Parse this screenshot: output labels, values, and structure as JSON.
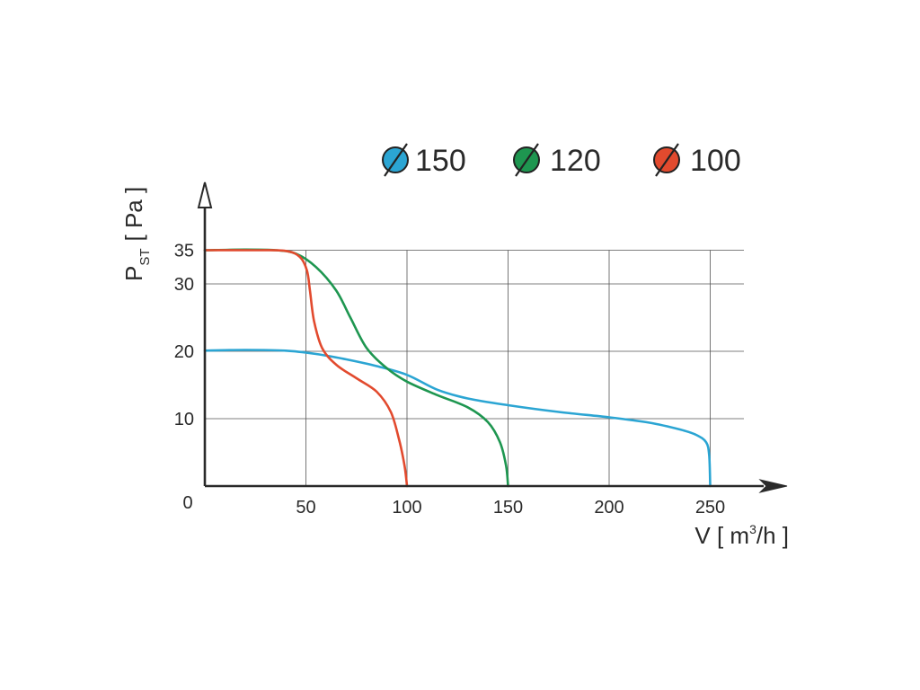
{
  "chart_data": {
    "type": "line",
    "title": "",
    "xlabel": {
      "main": "V [ m",
      "sup": "3",
      "tail": "/h ]"
    },
    "ylabel": {
      "main": "P",
      "sub": "ST",
      "tail": "[ Pa ]"
    },
    "xlim": [
      0,
      260
    ],
    "ylim": [
      0,
      45
    ],
    "x_ticks": [
      50,
      100,
      150,
      200,
      250
    ],
    "y_ticks": [
      10,
      20,
      30,
      35
    ],
    "origin_label": "0",
    "grid": true,
    "legend_position": "top-right",
    "series": [
      {
        "name": "150",
        "color": "#2ba5d3",
        "points": [
          [
            0,
            20.1
          ],
          [
            20,
            20.2
          ],
          [
            40,
            20.1
          ],
          [
            55,
            19.6
          ],
          [
            70,
            18.8
          ],
          [
            85,
            17.8
          ],
          [
            100,
            16.5
          ],
          [
            115,
            14.3
          ],
          [
            130,
            13.0
          ],
          [
            150,
            12.0
          ],
          [
            175,
            11.0
          ],
          [
            200,
            10.2
          ],
          [
            220,
            9.4
          ],
          [
            235,
            8.4
          ],
          [
            243,
            7.6
          ],
          [
            248,
            6.5
          ],
          [
            249.5,
            4.5
          ],
          [
            250,
            0
          ]
        ]
      },
      {
        "name": "120",
        "color": "#1e9650",
        "points": [
          [
            0,
            35.0
          ],
          [
            20,
            35.1
          ],
          [
            35,
            35.0
          ],
          [
            45,
            34.5
          ],
          [
            55,
            32.5
          ],
          [
            65,
            29.0
          ],
          [
            72,
            25.0
          ],
          [
            80,
            20.5
          ],
          [
            90,
            17.5
          ],
          [
            100,
            15.5
          ],
          [
            115,
            13.5
          ],
          [
            130,
            11.7
          ],
          [
            140,
            9.5
          ],
          [
            146,
            6.5
          ],
          [
            149,
            3.0
          ],
          [
            150,
            0
          ]
        ]
      },
      {
        "name": "100",
        "color": "#e24a2e",
        "points": [
          [
            0,
            35.0
          ],
          [
            25,
            35.0
          ],
          [
            40,
            34.9
          ],
          [
            47,
            34.0
          ],
          [
            50.5,
            32.0
          ],
          [
            52,
            29.0
          ],
          [
            54,
            24.5
          ],
          [
            58,
            20.5
          ],
          [
            65,
            18.0
          ],
          [
            75,
            16.0
          ],
          [
            85,
            14.0
          ],
          [
            92,
            11.0
          ],
          [
            96,
            7.0
          ],
          [
            98.8,
            3.0
          ],
          [
            100,
            0
          ]
        ]
      }
    ]
  }
}
